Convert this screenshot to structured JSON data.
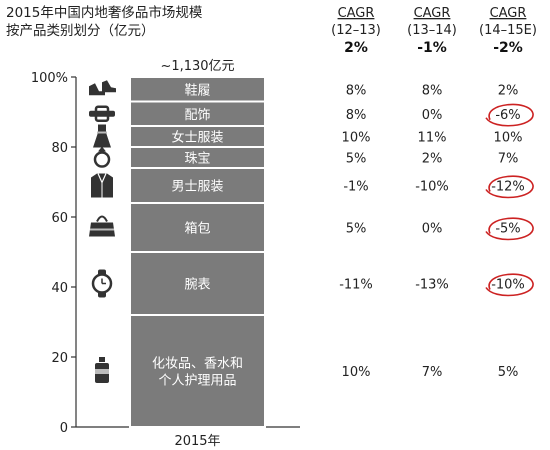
{
  "chart_data": {
    "type": "bar",
    "subtype": "stacked-100",
    "title_lines": [
      "2015年中国内地奢侈品市场规模",
      "按产品类别划分（亿元）"
    ],
    "categories": [
      "2015年"
    ],
    "total_label": "~1,130亿元",
    "ylim": [
      0,
      100
    ],
    "yticks": [
      0,
      20,
      40,
      60,
      80,
      100
    ],
    "ytick_labels": [
      "0",
      "20",
      "40",
      "60",
      "80",
      "100%"
    ],
    "segments": [
      {
        "name": "化妆品、香水和个人护理用品",
        "label_lines": [
          "化妆品、香水和",
          "个人护理用品"
        ],
        "value": 32,
        "icon": "perfume-bottle-icon",
        "cagr": [
          "10%",
          "7%",
          "5%"
        ],
        "circled": false
      },
      {
        "name": "腕表",
        "label_lines": [
          "腕表"
        ],
        "value": 18,
        "icon": "watch-icon",
        "cagr": [
          "-11%",
          "-13%",
          "-10%"
        ],
        "circled": true
      },
      {
        "name": "箱包",
        "label_lines": [
          "箱包"
        ],
        "value": 14,
        "icon": "handbag-icon",
        "cagr": [
          "5%",
          "0%",
          "-5%"
        ],
        "circled": true
      },
      {
        "name": "男士服装",
        "label_lines": [
          "男士服装"
        ],
        "value": 10,
        "icon": "mens-jacket-icon",
        "cagr": [
          "-1%",
          "-10%",
          "-12%"
        ],
        "circled": true
      },
      {
        "name": "珠宝",
        "label_lines": [
          "珠宝"
        ],
        "value": 6,
        "icon": "ring-icon",
        "cagr": [
          "5%",
          "2%",
          "7%"
        ],
        "circled": false
      },
      {
        "name": "女士服装",
        "label_lines": [
          "女士服装"
        ],
        "value": 6,
        "icon": "dress-icon",
        "cagr": [
          "10%",
          "11%",
          "10%"
        ],
        "circled": false
      },
      {
        "name": "配饰",
        "label_lines": [
          "配饰"
        ],
        "value": 7,
        "icon": "belt-icon",
        "cagr": [
          "8%",
          "0%",
          "-6%"
        ],
        "circled": true
      },
      {
        "name": "鞋履",
        "label_lines": [
          "鞋履"
        ],
        "value": 7,
        "icon": "shoes-icon",
        "cagr": [
          "8%",
          "8%",
          "2%"
        ],
        "circled": false
      }
    ],
    "cagr_columns": [
      {
        "header": "CAGR",
        "period": "(12–13)",
        "total": "2%"
      },
      {
        "header": "CAGR",
        "period": "(13–14)",
        "total": "-1%"
      },
      {
        "header": "CAGR",
        "period": "(14–15E)",
        "total": "-2%"
      }
    ],
    "colors": {
      "bar": "#7b7b7b",
      "bar_divider": "#ffffff",
      "axis": "#333333",
      "circle": "#cc2222"
    },
    "grid": false,
    "legend": "none"
  }
}
